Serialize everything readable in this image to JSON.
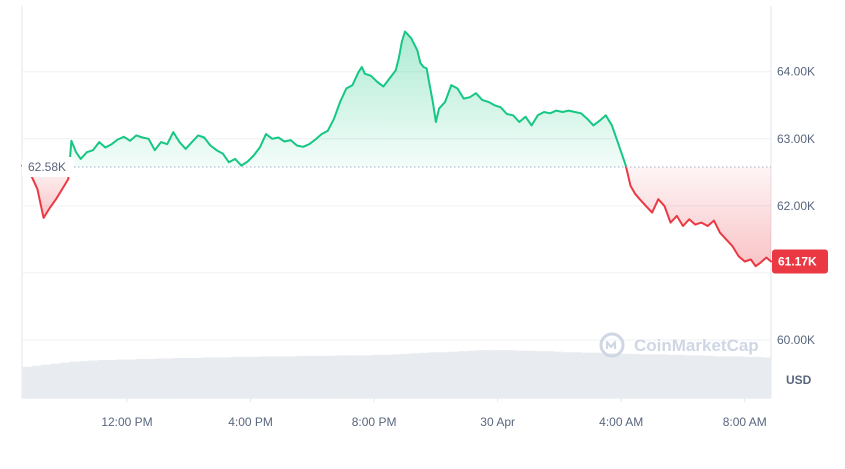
{
  "chart_data": {
    "type": "area",
    "baseline": {
      "value": 62.58,
      "label": "62.58K"
    },
    "current": {
      "value": 61.17,
      "label": "61.17K"
    },
    "yaxis": {
      "unit": "USD",
      "ticks": [
        {
          "value": 64.0,
          "label": "64.00K"
        },
        {
          "value": 63.0,
          "label": "63.00K"
        },
        {
          "value": 62.0,
          "label": "62.00K"
        },
        {
          "value": 61.0,
          "label": ""
        },
        {
          "value": 60.0,
          "label": "60.00K"
        }
      ]
    },
    "xaxis": {
      "ticks": [
        {
          "x": 6.0,
          "label": "12:00 PM"
        },
        {
          "x": 10.0,
          "label": "4:00 PM"
        },
        {
          "x": 14.0,
          "label": "8:00 PM"
        },
        {
          "x": 18.0,
          "label": "30 Apr"
        },
        {
          "x": 22.0,
          "label": "4:00 AM"
        },
        {
          "x": 26.0,
          "label": "8:00 AM"
        }
      ]
    },
    "x_unit": "hours",
    "series": [
      {
        "values": [
          [
            2.6,
            62.6
          ],
          [
            2.9,
            62.45
          ],
          [
            3.1,
            62.25
          ],
          [
            3.3,
            61.82
          ],
          [
            3.5,
            61.97
          ],
          [
            3.7,
            62.1
          ],
          [
            3.9,
            62.25
          ],
          [
            4.1,
            62.4
          ],
          [
            4.2,
            62.97
          ],
          [
            4.35,
            62.8
          ],
          [
            4.5,
            62.7
          ],
          [
            4.7,
            62.8
          ],
          [
            4.9,
            62.83
          ],
          [
            5.1,
            62.95
          ],
          [
            5.3,
            62.87
          ],
          [
            5.5,
            62.92
          ],
          [
            5.7,
            62.99
          ],
          [
            5.9,
            63.03
          ],
          [
            6.1,
            62.97
          ],
          [
            6.3,
            63.05
          ],
          [
            6.5,
            63.02
          ],
          [
            6.7,
            63.0
          ],
          [
            6.9,
            62.83
          ],
          [
            7.1,
            62.95
          ],
          [
            7.3,
            62.92
          ],
          [
            7.5,
            63.1
          ],
          [
            7.7,
            62.95
          ],
          [
            7.9,
            62.85
          ],
          [
            8.1,
            62.95
          ],
          [
            8.3,
            63.05
          ],
          [
            8.5,
            63.02
          ],
          [
            8.7,
            62.9
          ],
          [
            8.9,
            62.83
          ],
          [
            9.1,
            62.78
          ],
          [
            9.3,
            62.65
          ],
          [
            9.5,
            62.7
          ],
          [
            9.7,
            62.6
          ],
          [
            9.9,
            62.66
          ],
          [
            10.1,
            62.75
          ],
          [
            10.3,
            62.87
          ],
          [
            10.5,
            63.07
          ],
          [
            10.7,
            63.0
          ],
          [
            10.9,
            63.02
          ],
          [
            11.1,
            62.96
          ],
          [
            11.3,
            62.98
          ],
          [
            11.5,
            62.9
          ],
          [
            11.7,
            62.88
          ],
          [
            11.9,
            62.92
          ],
          [
            12.1,
            62.99
          ],
          [
            12.3,
            63.07
          ],
          [
            12.5,
            63.12
          ],
          [
            12.7,
            63.3
          ],
          [
            12.9,
            63.55
          ],
          [
            13.1,
            63.75
          ],
          [
            13.3,
            63.8
          ],
          [
            13.5,
            64.0
          ],
          [
            13.6,
            64.07
          ],
          [
            13.7,
            63.97
          ],
          [
            13.9,
            63.94
          ],
          [
            14.1,
            63.85
          ],
          [
            14.3,
            63.78
          ],
          [
            14.5,
            63.9
          ],
          [
            14.7,
            64.02
          ],
          [
            14.8,
            64.2
          ],
          [
            14.9,
            64.45
          ],
          [
            15.0,
            64.6
          ],
          [
            15.2,
            64.5
          ],
          [
            15.4,
            64.32
          ],
          [
            15.5,
            64.13
          ],
          [
            15.6,
            64.07
          ],
          [
            15.7,
            64.05
          ],
          [
            15.9,
            63.55
          ],
          [
            16.0,
            63.25
          ],
          [
            16.1,
            63.45
          ],
          [
            16.3,
            63.55
          ],
          [
            16.5,
            63.8
          ],
          [
            16.7,
            63.75
          ],
          [
            16.9,
            63.6
          ],
          [
            17.1,
            63.62
          ],
          [
            17.3,
            63.68
          ],
          [
            17.5,
            63.58
          ],
          [
            17.7,
            63.55
          ],
          [
            17.9,
            63.5
          ],
          [
            18.1,
            63.47
          ],
          [
            18.3,
            63.37
          ],
          [
            18.5,
            63.35
          ],
          [
            18.7,
            63.25
          ],
          [
            18.9,
            63.33
          ],
          [
            19.1,
            63.2
          ],
          [
            19.3,
            63.35
          ],
          [
            19.5,
            63.4
          ],
          [
            19.7,
            63.38
          ],
          [
            19.9,
            63.42
          ],
          [
            20.1,
            63.4
          ],
          [
            20.3,
            63.42
          ],
          [
            20.5,
            63.4
          ],
          [
            20.7,
            63.38
          ],
          [
            20.9,
            63.3
          ],
          [
            21.1,
            63.2
          ],
          [
            21.3,
            63.27
          ],
          [
            21.5,
            63.35
          ],
          [
            21.7,
            63.2
          ],
          [
            21.85,
            63.0
          ],
          [
            22.0,
            62.8
          ],
          [
            22.15,
            62.6
          ],
          [
            22.3,
            62.3
          ],
          [
            22.45,
            62.18
          ],
          [
            22.6,
            62.1
          ],
          [
            22.8,
            62.0
          ],
          [
            23.0,
            61.9
          ],
          [
            23.2,
            62.1
          ],
          [
            23.4,
            62.0
          ],
          [
            23.6,
            61.75
          ],
          [
            23.8,
            61.85
          ],
          [
            24.0,
            61.7
          ],
          [
            24.2,
            61.8
          ],
          [
            24.4,
            61.72
          ],
          [
            24.6,
            61.75
          ],
          [
            24.8,
            61.7
          ],
          [
            25.0,
            61.78
          ],
          [
            25.2,
            61.6
          ],
          [
            25.4,
            61.5
          ],
          [
            25.6,
            61.4
          ],
          [
            25.8,
            61.25
          ],
          [
            26.0,
            61.17
          ],
          [
            26.2,
            61.2
          ],
          [
            26.35,
            61.1
          ],
          [
            26.5,
            61.15
          ],
          [
            26.7,
            61.23
          ],
          [
            26.85,
            61.17
          ]
        ]
      }
    ],
    "volume": [
      0.6,
      0.62,
      0.64,
      0.66,
      0.68,
      0.7,
      0.71,
      0.72,
      0.73,
      0.73,
      0.74,
      0.74,
      0.75,
      0.75,
      0.76,
      0.76,
      0.77,
      0.77,
      0.77,
      0.78,
      0.78,
      0.78,
      0.79,
      0.79,
      0.79,
      0.8,
      0.8,
      0.8,
      0.8,
      0.81,
      0.81,
      0.81,
      0.81,
      0.82,
      0.82,
      0.82,
      0.82,
      0.83,
      0.83,
      0.84,
      0.85,
      0.86,
      0.87,
      0.88,
      0.88,
      0.89,
      0.9,
      0.91,
      0.92,
      0.92,
      0.92,
      0.92,
      0.91,
      0.91,
      0.9,
      0.9,
      0.89,
      0.88,
      0.88,
      0.87,
      0.87,
      0.86,
      0.86,
      0.85,
      0.85,
      0.84,
      0.84,
      0.84,
      0.83,
      0.83,
      0.82,
      0.82,
      0.81,
      0.8,
      0.8,
      0.8,
      0.79,
      0.79,
      0.78
    ],
    "watermark": "CoinMarketCap",
    "colors": {
      "up_line": "#16c784",
      "down_line": "#ea3943",
      "up_fill": "#16c784",
      "down_fill": "#ea3943",
      "grid": "#eef0f4",
      "volume": "#e8ebef",
      "baseline_label_bg": "#ffffff",
      "current_label_bg": "#ea3943"
    }
  }
}
